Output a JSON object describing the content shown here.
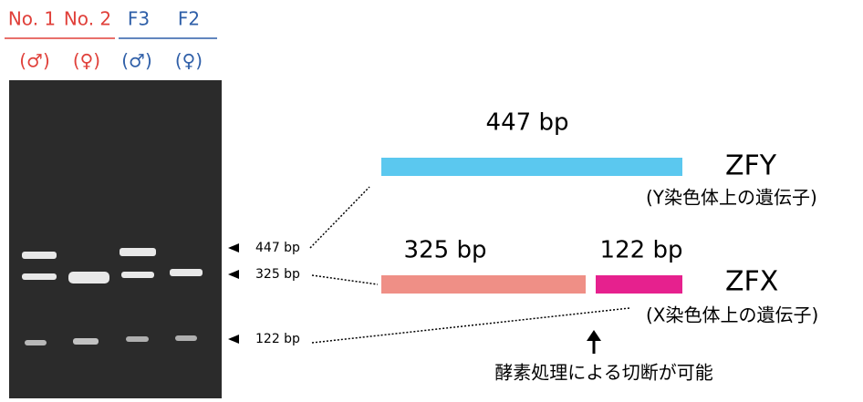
{
  "lanes": [
    {
      "name": "No. 1",
      "sex": "(♂)"
    },
    {
      "name": "No. 2",
      "sex": "(♀)"
    },
    {
      "name": "F3",
      "sex": "(♂)"
    },
    {
      "name": "F2",
      "sex": "(♀)"
    }
  ],
  "band_labels": [
    "447 bp",
    "325 bp",
    "122 bp"
  ],
  "zfy": {
    "name": "ZFY",
    "description": "(Y染色体上の遺伝子)",
    "size": "447 bp"
  },
  "zfx": {
    "name": "ZFX",
    "description": "(X染色体上の遺伝子)",
    "size_left": "325 bp",
    "size_right": "122 bp"
  },
  "note": "酵素処理による切断が可能"
}
